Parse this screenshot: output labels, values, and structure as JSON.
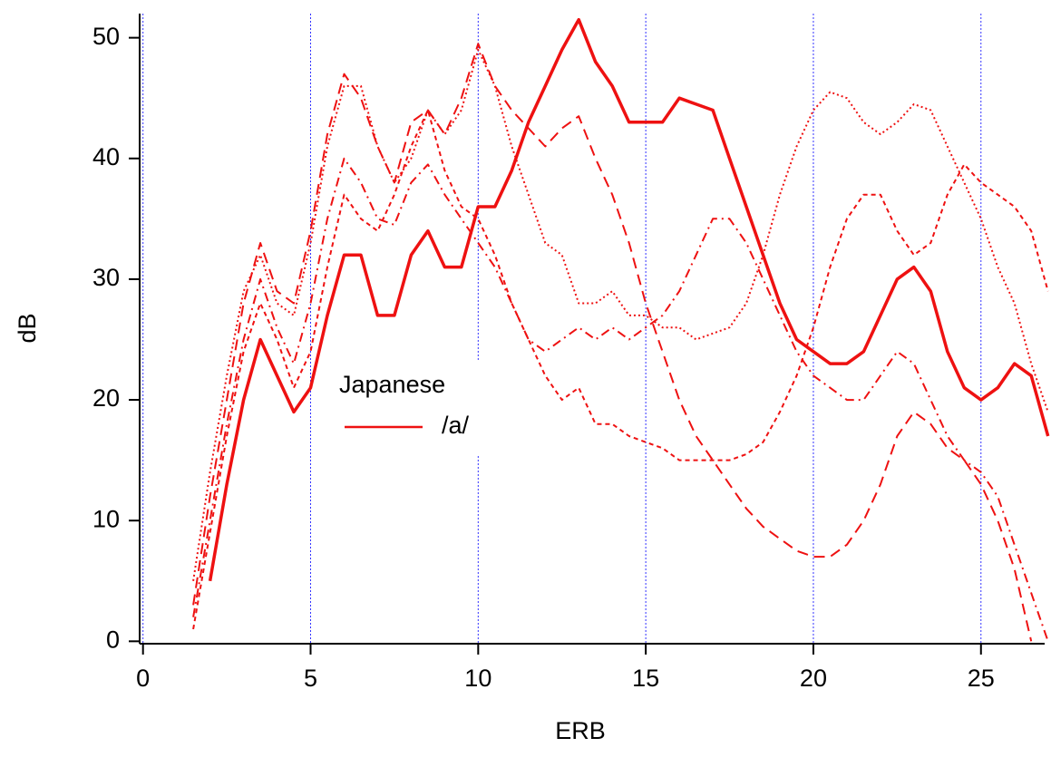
{
  "chart_data": {
    "type": "line",
    "x_label": "ERB",
    "y_label": "dB",
    "legend_title": "Japanese",
    "xlim": [
      -0.1,
      26.9
    ],
    "ylim": [
      -0.2,
      52
    ],
    "xticks": [
      0,
      5,
      10,
      15,
      20,
      25
    ],
    "yticks": [
      0,
      10,
      20,
      30,
      40,
      50
    ],
    "xgrid": true,
    "grid_color": "#3333ff",
    "x": [
      1.5,
      2,
      2.5,
      3,
      3.5,
      4,
      4.5,
      5,
      5.5,
      6,
      6.5,
      7,
      7.5,
      8,
      8.5,
      9,
      9.5,
      10,
      10.5,
      11,
      11.5,
      12,
      12.5,
      13,
      13.5,
      14,
      14.5,
      15,
      15.5,
      16,
      16.5,
      17,
      17.5,
      18,
      18.5,
      19,
      19.5,
      20,
      20.5,
      21,
      21.5,
      22,
      22.5,
      23,
      23.5,
      24,
      24.5,
      25,
      25.5,
      26,
      26.5,
      27
    ],
    "series": [
      {
        "name": "/a/",
        "color": "#ee1111",
        "style": "solid",
        "values": [
          null,
          5,
          13,
          20,
          25,
          22,
          19,
          21,
          27,
          32,
          32,
          27,
          27,
          32,
          34,
          31,
          31,
          36,
          36,
          39,
          43,
          46,
          49,
          51.5,
          48,
          46,
          43,
          43,
          43,
          45,
          44.5,
          44,
          40,
          36,
          32,
          28,
          25,
          24,
          23,
          23,
          24,
          27,
          30,
          31,
          29,
          24,
          21,
          20,
          21,
          23,
          22,
          17
        ]
      },
      {
        "color": "#ee1111",
        "style": "dotted",
        "values": [
          5,
          14,
          22,
          29,
          32,
          28,
          27,
          33,
          41,
          46,
          46,
          41,
          38,
          40,
          44,
          42,
          44,
          49,
          46,
          41,
          37,
          33,
          32,
          28,
          28,
          29,
          27,
          27,
          26,
          26,
          25,
          25.5,
          26,
          28,
          32,
          37,
          41,
          44,
          45.5,
          45,
          43,
          42,
          43,
          44.5,
          44,
          41,
          38,
          35,
          31,
          28,
          23,
          19
        ]
      },
      {
        "color": "#ee1111",
        "style": "dashed",
        "values": [
          3,
          12,
          20,
          28,
          33,
          29,
          28,
          34,
          42,
          47,
          45,
          41,
          38,
          43,
          44,
          42,
          45,
          49.5,
          46,
          44,
          42.5,
          41,
          42.5,
          43.5,
          40,
          37,
          33,
          28,
          24,
          20,
          17,
          15,
          13,
          11,
          9.5,
          8.5,
          7.5,
          7,
          7,
          8,
          10,
          13,
          17,
          19,
          18,
          16,
          15,
          13,
          10,
          6,
          0,
          null
        ]
      },
      {
        "color": "#ee1111",
        "style": "dash-dot",
        "values": [
          2,
          10,
          18,
          25,
          30,
          26,
          23,
          28,
          35,
          40,
          38,
          35,
          34.5,
          38,
          39.5,
          37,
          35,
          33,
          31,
          28,
          25,
          24,
          25,
          26,
          25,
          26,
          25,
          26,
          27,
          29,
          32,
          35,
          35,
          33,
          30,
          27,
          24,
          22,
          21,
          20,
          20,
          22,
          24,
          23,
          20,
          17,
          15,
          14,
          12,
          8,
          4,
          0
        ]
      },
      {
        "color": "#ee1111",
        "style": "short-dash",
        "values": [
          1,
          9,
          17,
          24,
          28,
          25,
          21,
          24,
          31,
          37,
          35,
          34,
          37,
          41,
          44,
          39,
          36,
          35,
          32,
          28,
          25,
          22,
          20,
          21,
          18,
          18,
          17,
          16.5,
          16,
          15,
          15,
          15,
          15,
          15.5,
          16.5,
          19,
          22,
          26,
          31,
          35,
          37,
          37,
          34,
          32,
          33,
          37,
          39.5,
          38,
          37,
          36,
          34,
          29
        ]
      }
    ]
  }
}
